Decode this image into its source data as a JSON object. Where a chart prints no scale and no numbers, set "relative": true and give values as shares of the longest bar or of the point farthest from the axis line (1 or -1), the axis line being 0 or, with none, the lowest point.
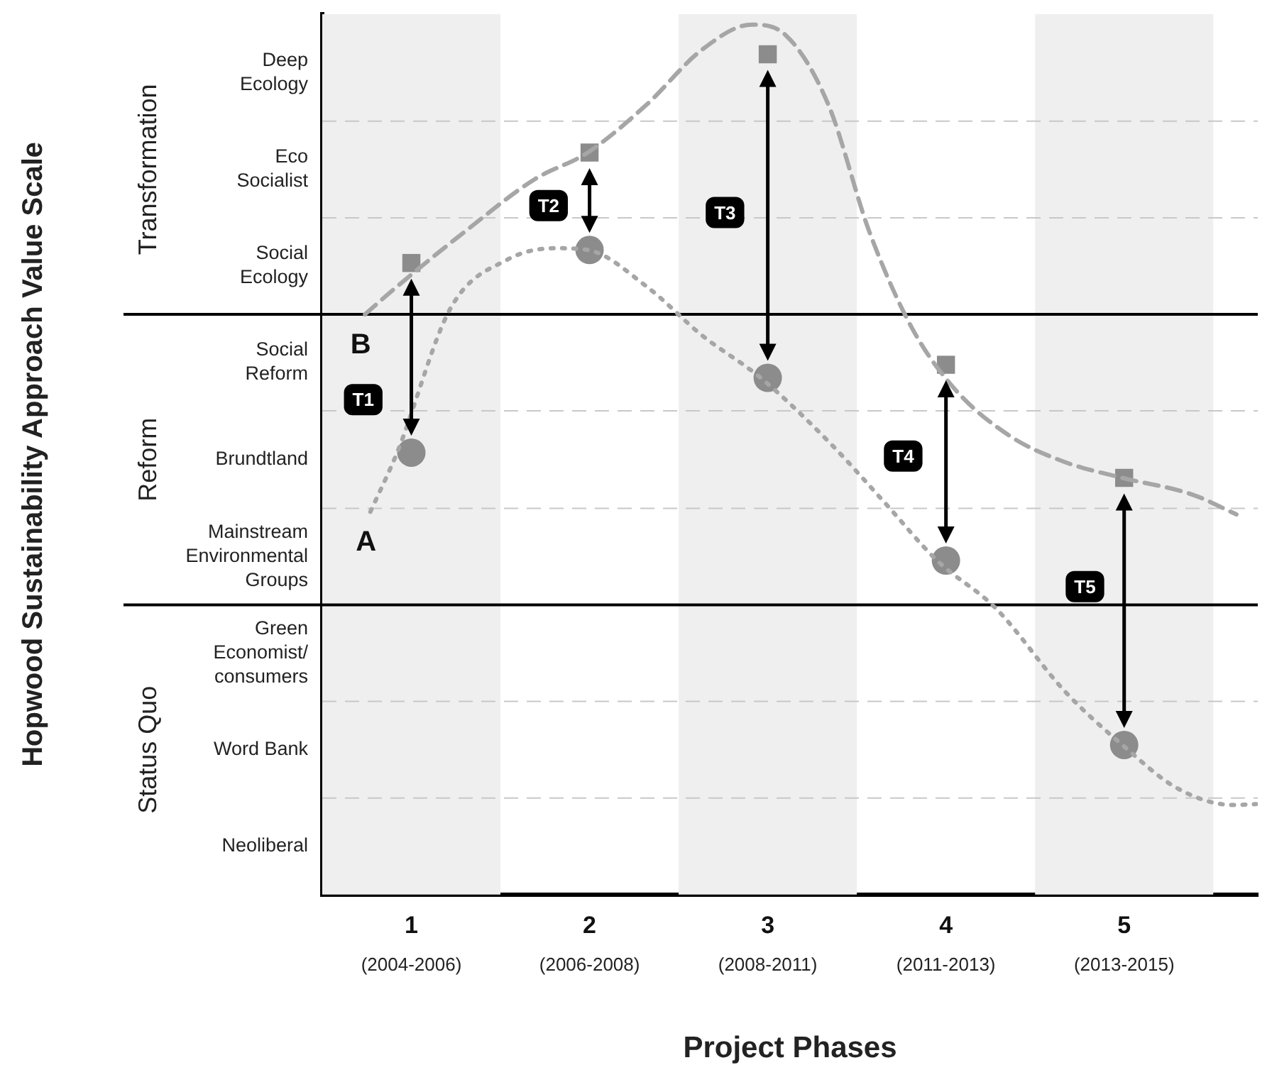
{
  "chart_data": {
    "type": "line",
    "relative": true,
    "xlabel": "Project Phases",
    "xlim": [
      0.5,
      5.75
    ],
    "xticks": [
      1,
      2,
      3,
      4,
      5
    ],
    "grid": false,
    "legend": false,
    "bands": [
      {
        "axis": "x",
        "from": 0.5,
        "to": 1.5,
        "color": "#efefef"
      },
      {
        "axis": "x",
        "from": 2.5,
        "to": 3.5,
        "color": "#efefef"
      },
      {
        "axis": "x",
        "from": 4.5,
        "to": 5.5,
        "color": "#efefef"
      }
    ],
    "ref_lines": [
      {
        "axis": "y",
        "value": 0.111,
        "color": "#c8c8c8",
        "line_style": "dashed"
      },
      {
        "axis": "y",
        "value": 0.222,
        "color": "#c8c8c8",
        "line_style": "dashed"
      },
      {
        "axis": "y",
        "value": 0.333,
        "color": "#000000",
        "line_style": "solid"
      },
      {
        "axis": "y",
        "value": 0.444,
        "color": "#c8c8c8",
        "line_style": "dashed"
      },
      {
        "axis": "y",
        "value": 0.556,
        "color": "#c8c8c8",
        "line_style": "dashed"
      },
      {
        "axis": "y",
        "value": 0.667,
        "color": "#000000",
        "line_style": "solid"
      },
      {
        "axis": "y",
        "value": 0.778,
        "color": "#c8c8c8",
        "line_style": "dashed"
      },
      {
        "axis": "y",
        "value": 0.889,
        "color": "#c8c8c8",
        "line_style": "dashed"
      }
    ],
    "annotations": [
      {
        "text": "T1",
        "x": 0.73,
        "y": 0.569
      },
      {
        "text": "T2",
        "x": 1.77,
        "y": 0.792
      },
      {
        "text": "T3",
        "x": 2.76,
        "y": 0.784
      },
      {
        "text": "T4",
        "x": 3.76,
        "y": 0.504
      },
      {
        "text": "T5",
        "x": 4.78,
        "y": 0.354
      },
      "(2004-2006)",
      "(2006-2008)",
      "(2008-2011)",
      "(2011-2013)",
      "(2013-2015)",
      "Deep\nEcology",
      "Eco\nSocialist",
      "Social\nEcology",
      "Social\nReform",
      "Brundtland",
      "Mainstream\nEnvironmental\nGroups",
      "Green\nEconomist/\nconsumers",
      "Word Bank",
      "Neoliberal",
      "Transformation",
      "Reform",
      "Status Quo",
      "Hopwood Sustainability Approach Value Scale"
    ],
    "series": [
      {
        "name": "A",
        "type": "line",
        "line_style": "dotted",
        "marker": "none",
        "color": "#a6a6a6",
        "x": [
          0.77,
          0.92,
          1.22,
          1.54,
          1.81,
          1.99,
          2.32,
          2.63,
          2.96,
          3.34,
          3.65,
          3.95,
          4.28,
          4.67,
          4.99,
          5.3,
          5.61,
          5.74
        ],
        "values": [
          0.44,
          0.508,
          0.674,
          0.73,
          0.743,
          0.741,
          0.699,
          0.643,
          0.594,
          0.521,
          0.452,
          0.384,
          0.329,
          0.233,
          0.172,
          0.122,
          0.103,
          0.104
        ]
      },
      {
        "name": "B",
        "type": "line",
        "line_style": "dashed",
        "marker": "none",
        "color": "#a6a6a6",
        "x": [
          0.74,
          0.92,
          1.3,
          1.69,
          1.99,
          2.32,
          2.63,
          2.91,
          3.1,
          3.34,
          3.57,
          3.81,
          4.05,
          4.36,
          4.67,
          4.99,
          5.38,
          5.63
        ],
        "values": [
          0.667,
          0.699,
          0.762,
          0.822,
          0.853,
          0.908,
          0.971,
          1,
          0.988,
          0.908,
          0.762,
          0.651,
          0.581,
          0.527,
          0.497,
          0.479,
          0.46,
          0.437
        ]
      },
      {
        "type": "scatter",
        "marker": "circle",
        "color": "#8c8c8c",
        "x": [
          1,
          2,
          3,
          4,
          5
        ],
        "values": [
          0.508,
          0.741,
          0.594,
          0.384,
          0.172
        ]
      },
      {
        "type": "scatter",
        "marker": "square",
        "color": "#8c8c8c",
        "x": [
          1,
          2,
          3,
          4,
          5
        ],
        "values": [
          0.726,
          0.853,
          0.966,
          0.609,
          0.479
        ]
      }
    ]
  }
}
